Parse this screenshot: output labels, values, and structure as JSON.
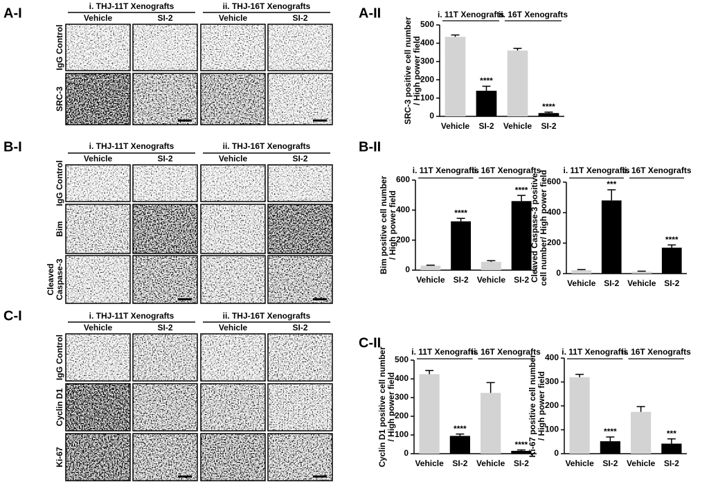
{
  "micrograph_panels": [
    {
      "label": "A-I",
      "groups": [
        "i. THJ-11T Xenografts",
        "ii. THJ-16T Xenografts"
      ],
      "columns": [
        "Vehicle",
        "SI-2",
        "Vehicle",
        "SI-2"
      ],
      "rows": [
        [
          "IgG Control"
        ],
        [
          "SRC-3"
        ]
      ]
    },
    {
      "label": "B-I",
      "groups": [
        "i. THJ-11T Xenografts",
        "ii. THJ-16T Xenografts"
      ],
      "columns": [
        "Vehicle",
        "SI-2",
        "Vehicle",
        "SI-2"
      ],
      "rows": [
        [
          "IgG Control"
        ],
        [
          "Bim"
        ],
        [
          "Cleaved",
          "Caspase-3"
        ]
      ]
    },
    {
      "label": "C-I",
      "groups": [
        "i. THJ-11T Xenografts",
        "ii. THJ-16T Xenografts"
      ],
      "columns": [
        "Vehicle",
        "SI-2",
        "Vehicle",
        "SI-2"
      ],
      "rows": [
        [
          "IgG Control"
        ],
        [
          "Cyclin D1"
        ],
        [
          "Ki-67"
        ]
      ]
    }
  ],
  "chart_panel_labels": [
    "A-II",
    "B-II",
    "C-II"
  ],
  "chart_data": [
    {
      "type": "bar",
      "ylabel": [
        "SRC-3 positive cell number",
        "/ High power field"
      ],
      "groups": [
        "i. 11T Xenografts",
        "ii. 16T Xenografts"
      ],
      "categories": [
        "Vehicle",
        "SI-2",
        "Vehicle",
        "SI-2"
      ],
      "values": [
        435,
        140,
        360,
        18
      ],
      "errors": [
        10,
        25,
        12,
        5
      ],
      "significance": [
        null,
        "****",
        null,
        "****"
      ],
      "colors": [
        "#d3d3d3",
        "#000000",
        "#d3d3d3",
        "#000000"
      ],
      "ylim": [
        0,
        500
      ],
      "yticks": [
        0,
        100,
        200,
        300,
        400,
        500
      ]
    },
    {
      "type": "bar",
      "ylabel": [
        "Bim positive cell number",
        "/ High power field"
      ],
      "groups": [
        "i. 11T Xenografts",
        "ii. 16T Xenografts"
      ],
      "categories": [
        "Vehicle",
        "SI-2",
        "Vehicle",
        "SI-2"
      ],
      "values": [
        30,
        325,
        55,
        460
      ],
      "errors": [
        3,
        20,
        8,
        38
      ],
      "significance": [
        null,
        "****",
        null,
        "****"
      ],
      "colors": [
        "#d3d3d3",
        "#000000",
        "#d3d3d3",
        "#000000"
      ],
      "ylim": [
        0,
        600
      ],
      "yticks": [
        0,
        200,
        400,
        600
      ]
    },
    {
      "type": "bar",
      "ylabel": [
        "Cleaved Caspase-3 positive",
        "cell number/ High power field"
      ],
      "groups": [
        "i. 11T Xenografts",
        "ii. 16T Xenografts"
      ],
      "categories": [
        "Vehicle",
        "SI-2",
        "Vehicle",
        "SI-2"
      ],
      "values": [
        22,
        480,
        12,
        170
      ],
      "errors": [
        4,
        70,
        4,
        18
      ],
      "significance": [
        null,
        "***",
        null,
        "****"
      ],
      "colors": [
        "#d3d3d3",
        "#000000",
        "#d3d3d3",
        "#000000"
      ],
      "ylim": [
        0,
        600
      ],
      "yticks": [
        0,
        200,
        400,
        600
      ]
    },
    {
      "type": "bar",
      "ylabel": [
        "Cyclin D1 positive cell number",
        "/ High power field"
      ],
      "groups": [
        "i. 11T Xenografts",
        "ii. 16T Xenografts"
      ],
      "categories": [
        "Vehicle",
        "SI-2",
        "Vehicle",
        "SI-2"
      ],
      "values": [
        425,
        95,
        325,
        15
      ],
      "errors": [
        20,
        10,
        55,
        5
      ],
      "significance": [
        null,
        "****",
        null,
        "****"
      ],
      "colors": [
        "#d3d3d3",
        "#000000",
        "#d3d3d3",
        "#000000"
      ],
      "ylim": [
        0,
        500
      ],
      "yticks": [
        0,
        100,
        200,
        300,
        400,
        500
      ]
    },
    {
      "type": "bar",
      "ylabel": [
        "Ki-67 positive cell number",
        "/ High power field"
      ],
      "groups": [
        "i. 11T Xenografts",
        "ii. 16T Xenografts"
      ],
      "categories": [
        "Vehicle",
        "SI-2",
        "Vehicle",
        "SI-2"
      ],
      "values": [
        320,
        52,
        175,
        42
      ],
      "errors": [
        12,
        18,
        22,
        20
      ],
      "significance": [
        null,
        "****",
        null,
        "***"
      ],
      "colors": [
        "#d3d3d3",
        "#000000",
        "#d3d3d3",
        "#000000"
      ],
      "ylim": [
        0,
        400
      ],
      "yticks": [
        0,
        100,
        200,
        300,
        400
      ]
    }
  ]
}
